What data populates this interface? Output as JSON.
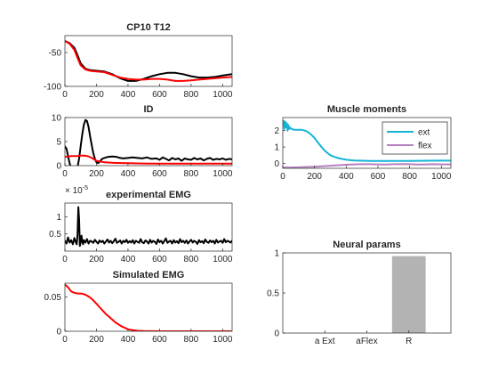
{
  "chart_data": [
    {
      "type": "line",
      "title": "CP10 T12",
      "xlim": [
        0,
        1060
      ],
      "ylim": [
        -100,
        -25
      ],
      "xticks": [
        0,
        200,
        400,
        600,
        800,
        1000
      ],
      "yticks": [
        -100,
        -50
      ],
      "series": [
        {
          "color": "#000000",
          "x": [
            0,
            30,
            60,
            80,
            100,
            130,
            160,
            200,
            250,
            300,
            350,
            400,
            450,
            500,
            550,
            600,
            650,
            700,
            750,
            800,
            850,
            900,
            950,
            1000,
            1060
          ],
          "y": [
            -33,
            -36,
            -43,
            -54,
            -66,
            -74,
            -76,
            -77,
            -78,
            -82,
            -88,
            -92,
            -92,
            -89,
            -85,
            -82,
            -80,
            -80,
            -82,
            -85,
            -87,
            -87,
            -86,
            -84,
            -82
          ]
        },
        {
          "color": "#ff0000",
          "x": [
            0,
            30,
            60,
            80,
            100,
            130,
            160,
            200,
            250,
            300,
            350,
            400,
            450,
            500,
            550,
            600,
            650,
            700,
            750,
            800,
            850,
            900,
            950,
            1000,
            1060
          ],
          "y": [
            -33,
            -37,
            -46,
            -58,
            -69,
            -75,
            -77,
            -78,
            -79,
            -83,
            -87,
            -89,
            -90,
            -90,
            -89,
            -89,
            -90,
            -92,
            -92,
            -91,
            -90,
            -89,
            -88,
            -87,
            -86
          ]
        }
      ]
    },
    {
      "type": "line",
      "title": "ID",
      "xlim": [
        0,
        1060
      ],
      "ylim": [
        0,
        10
      ],
      "xticks": [
        0,
        200,
        400,
        600,
        800,
        1000
      ],
      "yticks": [
        0,
        5,
        10
      ],
      "series": [
        {
          "color": "#000000",
          "x": [
            0,
            10,
            20,
            30,
            40,
            50,
            60,
            70,
            80,
            90,
            100,
            110,
            120,
            130,
            140,
            150,
            160,
            170,
            180,
            190,
            200,
            210,
            220,
            230,
            240,
            250,
            270,
            300,
            330,
            350,
            370,
            400,
            430,
            460,
            490,
            520,
            550,
            580,
            600,
            620,
            640,
            660,
            680,
            700,
            720,
            740,
            760,
            780,
            800,
            820,
            840,
            860,
            880,
            900,
            920,
            940,
            960,
            980,
            1000,
            1020,
            1040,
            1060
          ],
          "y": [
            4,
            3.5,
            2,
            0.5,
            -0.8,
            -1.5,
            -1.8,
            -1.5,
            -0.3,
            1.5,
            4,
            6.5,
            8.5,
            9.5,
            9.3,
            8,
            6,
            4.2,
            2.6,
            1.4,
            0.7,
            0.5,
            0.8,
            1.2,
            1.5,
            1.6,
            1.8,
            1.9,
            1.8,
            1.6,
            1.5,
            1.6,
            1.7,
            1.6,
            1.5,
            1.7,
            1.4,
            1.5,
            1.2,
            1.7,
            1.4,
            1.1,
            1.6,
            1.3,
            1.5,
            1.0,
            1.5,
            1.3,
            1.2,
            1.6,
            1.3,
            1.5,
            1.1,
            1.4,
            1.6,
            1.2,
            1.4,
            1.3,
            1.5,
            1.2,
            1.4,
            1.3
          ]
        },
        {
          "color": "#ff0000",
          "x": [
            0,
            20,
            40,
            60,
            80,
            100,
            120,
            140,
            160,
            180,
            200,
            250,
            300,
            400,
            500,
            600,
            700,
            800,
            900,
            1000,
            1060
          ],
          "y": [
            1.8,
            1.9,
            2.0,
            2.0,
            2.0,
            2.1,
            2.1,
            2.0,
            1.8,
            1.4,
            1.0,
            0.7,
            0.6,
            0.5,
            0.45,
            0.4,
            0.4,
            0.4,
            0.4,
            0.4,
            0.4
          ]
        }
      ]
    },
    {
      "type": "line",
      "title": "experimental EMG",
      "exponent": "× 10",
      "exponent_power": "-5",
      "xlim": [
        0,
        1060
      ],
      "ylim": [
        0,
        1.4
      ],
      "xticks": [
        0,
        200,
        400,
        600,
        800,
        1000
      ],
      "yticks": [
        0.5,
        1
      ],
      "ytick_labels": [
        "0.5",
        "1"
      ],
      "series": [
        {
          "color": "#000000",
          "x": [
            0,
            10,
            20,
            30,
            40,
            50,
            60,
            70,
            75,
            80,
            85,
            90,
            95,
            100,
            105,
            110,
            115,
            120,
            130,
            140,
            150,
            160,
            170,
            180,
            190,
            200,
            210,
            220,
            230,
            240,
            250,
            260,
            270,
            280,
            290,
            300,
            310,
            320,
            330,
            340,
            350,
            360,
            370,
            380,
            390,
            400,
            410,
            420,
            430,
            440,
            450,
            460,
            470,
            480,
            490,
            500,
            510,
            520,
            530,
            540,
            550,
            560,
            570,
            580,
            590,
            600,
            610,
            620,
            630,
            640,
            650,
            660,
            670,
            680,
            690,
            700,
            710,
            720,
            730,
            740,
            750,
            760,
            770,
            780,
            790,
            800,
            810,
            820,
            830,
            840,
            850,
            860,
            870,
            880,
            890,
            900,
            910,
            920,
            930,
            940,
            950,
            960,
            970,
            980,
            990,
            1000,
            1010,
            1020,
            1030,
            1040,
            1050,
            1060
          ],
          "y": [
            0.3,
            0.22,
            0.4,
            0.25,
            0.32,
            0.2,
            0.38,
            0.25,
            0.2,
            0.5,
            1.28,
            0.9,
            0.15,
            0.25,
            0.45,
            0.3,
            0.2,
            0.32,
            0.25,
            0.35,
            0.22,
            0.3,
            0.28,
            0.24,
            0.33,
            0.27,
            0.22,
            0.31,
            0.26,
            0.3,
            0.22,
            0.28,
            0.34,
            0.25,
            0.3,
            0.23,
            0.29,
            0.36,
            0.24,
            0.27,
            0.31,
            0.22,
            0.3,
            0.26,
            0.33,
            0.24,
            0.29,
            0.25,
            0.32,
            0.22,
            0.3,
            0.27,
            0.24,
            0.35,
            0.26,
            0.23,
            0.31,
            0.28,
            0.22,
            0.33,
            0.25,
            0.3,
            0.27,
            0.21,
            0.34,
            0.26,
            0.3,
            0.22,
            0.29,
            0.37,
            0.24,
            0.28,
            0.3,
            0.22,
            0.32,
            0.25,
            0.29,
            0.23,
            0.35,
            0.26,
            0.3,
            0.24,
            0.31,
            0.22,
            0.28,
            0.33,
            0.25,
            0.3,
            0.27,
            0.21,
            0.32,
            0.26,
            0.29,
            0.23,
            0.34,
            0.27,
            0.24,
            0.31,
            0.26,
            0.3,
            0.22,
            0.33,
            0.25,
            0.28,
            0.3,
            0.24,
            0.35,
            0.26,
            0.3,
            0.28,
            0.25,
            0.3
          ]
        }
      ]
    },
    {
      "type": "line",
      "title": "Simulated EMG",
      "xlim": [
        0,
        1060
      ],
      "ylim": [
        0,
        0.07
      ],
      "xticks": [
        0,
        200,
        400,
        600,
        800,
        1000
      ],
      "yticks": [
        0,
        0.05
      ],
      "ytick_labels": [
        "0",
        "0.05"
      ],
      "series": [
        {
          "color": "#ff0000",
          "x": [
            0,
            20,
            40,
            60,
            80,
            100,
            120,
            140,
            160,
            180,
            200,
            220,
            240,
            260,
            280,
            300,
            320,
            340,
            360,
            380,
            400,
            430,
            460,
            500,
            550,
            600,
            700,
            800,
            900,
            1000,
            1060
          ],
          "y": [
            0.068,
            0.064,
            0.058,
            0.056,
            0.055,
            0.055,
            0.054,
            0.052,
            0.049,
            0.045,
            0.04,
            0.035,
            0.03,
            0.025,
            0.021,
            0.017,
            0.013,
            0.01,
            0.007,
            0.005,
            0.003,
            0.0015,
            0.0007,
            0.0002,
            0.0001,
            0,
            0,
            0,
            0,
            0,
            0
          ]
        }
      ]
    },
    {
      "type": "line",
      "title": "Muscle moments",
      "xlim": [
        0,
        1060
      ],
      "ylim": [
        -0.3,
        2.8
      ],
      "xticks": [
        0,
        200,
        400,
        600,
        800,
        1000
      ],
      "yticks": [
        0,
        1,
        2
      ],
      "legend": "top-right",
      "series": [
        {
          "name": "ext",
          "color": "#16b3d8",
          "x": [
            0,
            5,
            10,
            15,
            20,
            25,
            30,
            35,
            40,
            45,
            50,
            55,
            60,
            70,
            80,
            100,
            120,
            140,
            160,
            180,
            200,
            220,
            240,
            260,
            280,
            300,
            330,
            360,
            400,
            450,
            500,
            550,
            600,
            700,
            800,
            900,
            1000,
            1060
          ],
          "y": [
            2.3,
            2.6,
            2.1,
            2.55,
            2.2,
            2.45,
            2.0,
            2.35,
            2.1,
            2.2,
            2.15,
            2.1,
            2.1,
            2.05,
            2.05,
            2.05,
            2.05,
            2.0,
            1.9,
            1.75,
            1.55,
            1.3,
            1.05,
            0.82,
            0.65,
            0.5,
            0.38,
            0.3,
            0.22,
            0.18,
            0.16,
            0.15,
            0.15,
            0.15,
            0.15,
            0.16,
            0.17,
            0.17
          ]
        },
        {
          "name": "flex",
          "color": "#b582bf",
          "x": [
            0,
            50,
            100,
            150,
            200,
            250,
            300,
            350,
            400,
            450,
            500,
            550,
            600,
            650,
            700,
            750,
            800,
            850,
            900,
            950,
            1000,
            1060
          ],
          "y": [
            -0.25,
            -0.25,
            -0.24,
            -0.22,
            -0.2,
            -0.17,
            -0.14,
            -0.11,
            -0.08,
            -0.06,
            -0.05,
            -0.05,
            -0.06,
            -0.07,
            -0.05,
            -0.04,
            -0.05,
            -0.07,
            -0.06,
            -0.05,
            -0.06,
            -0.06
          ]
        }
      ]
    },
    {
      "type": "bar",
      "title": "Neural params",
      "categories": [
        "a Ext",
        "aFlex",
        "R"
      ],
      "values": [
        0,
        0,
        0.96
      ],
      "color": "#b3b3b3",
      "ylim": [
        0,
        1
      ],
      "yticks": [
        0,
        0.5,
        1
      ],
      "ytick_labels": [
        "0",
        "0.5",
        "1"
      ]
    }
  ]
}
